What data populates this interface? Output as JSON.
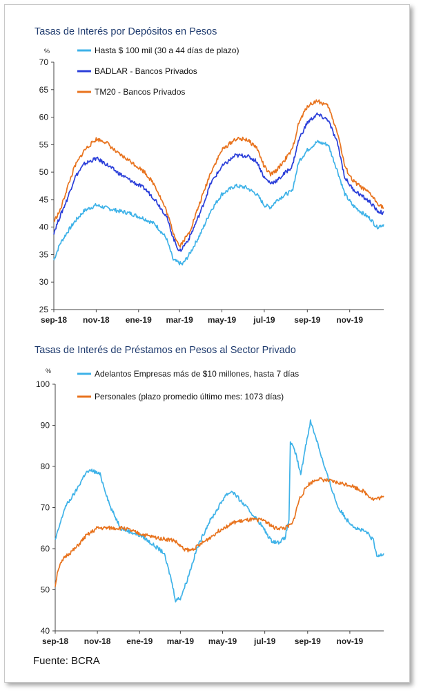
{
  "source": "Fuente: BCRA",
  "chart_data": [
    {
      "type": "line",
      "title": "Tasas de Interés por Depósitos en Pesos",
      "unit_label": "%",
      "ylim": [
        25,
        70
      ],
      "yticks": [
        25,
        30,
        35,
        40,
        45,
        50,
        55,
        60,
        65,
        70
      ],
      "xticks": [
        "sep-18",
        "nov-18",
        "ene-19",
        "mar-19",
        "may-19",
        "jul-19",
        "sep-19",
        "nov-19"
      ],
      "x_start": "2018-09-01",
      "x_end": "2019-12-20",
      "legend_position": "top-left",
      "grid": false,
      "series": [
        {
          "name": "Hasta $ 100 mil (30 a 44 días de plazo)",
          "color": "#3eb2e8",
          "points": [
            [
              "2018-09-01",
              34
            ],
            [
              "2018-09-10",
              37
            ],
            [
              "2018-09-20",
              39
            ],
            [
              "2018-10-01",
              41
            ],
            [
              "2018-10-15",
              43
            ],
            [
              "2018-11-01",
              44
            ],
            [
              "2018-11-15",
              43.5
            ],
            [
              "2018-12-01",
              43
            ],
            [
              "2018-12-20",
              42.5
            ],
            [
              "2019-01-10",
              41.5
            ],
            [
              "2019-01-25",
              40.5
            ],
            [
              "2019-02-10",
              38
            ],
            [
              "2019-02-20",
              34
            ],
            [
              "2019-03-05",
              33.2
            ],
            [
              "2019-03-15",
              35
            ],
            [
              "2019-04-01",
              39
            ],
            [
              "2019-04-15",
              43
            ],
            [
              "2019-05-01",
              46
            ],
            [
              "2019-05-20",
              47.5
            ],
            [
              "2019-06-05",
              47.2
            ],
            [
              "2019-06-20",
              46
            ],
            [
              "2019-07-01",
              44
            ],
            [
              "2019-07-10",
              43.6
            ],
            [
              "2019-07-20",
              45
            ],
            [
              "2019-08-01",
              46
            ],
            [
              "2019-08-10",
              46.5
            ],
            [
              "2019-08-20",
              52
            ],
            [
              "2019-09-01",
              54
            ],
            [
              "2019-09-15",
              55.5
            ],
            [
              "2019-10-01",
              55
            ],
            [
              "2019-10-15",
              50
            ],
            [
              "2019-10-25",
              46
            ],
            [
              "2019-11-05",
              44
            ],
            [
              "2019-11-20",
              42.5
            ],
            [
              "2019-12-01",
              41.5
            ],
            [
              "2019-12-10",
              40
            ],
            [
              "2019-12-20",
              40.5
            ]
          ]
        },
        {
          "name": "BADLAR - Bancos Privados",
          "color": "#2b3fd9",
          "points": [
            [
              "2018-09-01",
              39
            ],
            [
              "2018-09-10",
              42
            ],
            [
              "2018-09-20",
              45
            ],
            [
              "2018-10-01",
              49
            ],
            [
              "2018-10-15",
              51.5
            ],
            [
              "2018-11-01",
              52.5
            ],
            [
              "2018-11-15",
              51.5
            ],
            [
              "2018-12-01",
              50
            ],
            [
              "2018-12-20",
              48.5
            ],
            [
              "2019-01-10",
              47
            ],
            [
              "2019-01-25",
              45
            ],
            [
              "2019-02-10",
              42
            ],
            [
              "2019-02-20",
              38
            ],
            [
              "2019-03-01",
              35.5
            ],
            [
              "2019-03-15",
              38
            ],
            [
              "2019-04-01",
              43
            ],
            [
              "2019-04-15",
              48
            ],
            [
              "2019-05-01",
              51
            ],
            [
              "2019-05-20",
              53
            ],
            [
              "2019-06-05",
              53
            ],
            [
              "2019-06-20",
              52
            ],
            [
              "2019-07-01",
              49
            ],
            [
              "2019-07-10",
              48
            ],
            [
              "2019-07-20",
              48.5
            ],
            [
              "2019-08-01",
              50
            ],
            [
              "2019-08-10",
              51
            ],
            [
              "2019-08-20",
              56
            ],
            [
              "2019-09-01",
              59
            ],
            [
              "2019-09-15",
              60.5
            ],
            [
              "2019-10-01",
              59.5
            ],
            [
              "2019-10-15",
              55
            ],
            [
              "2019-10-25",
              49
            ],
            [
              "2019-11-05",
              47
            ],
            [
              "2019-11-20",
              45.5
            ],
            [
              "2019-12-01",
              44.5
            ],
            [
              "2019-12-10",
              43
            ],
            [
              "2019-12-20",
              42.5
            ]
          ]
        },
        {
          "name": "TM20 - Bancos Privados",
          "color": "#e8731e",
          "points": [
            [
              "2018-09-01",
              41
            ],
            [
              "2018-09-10",
              43
            ],
            [
              "2018-09-20",
              47
            ],
            [
              "2018-10-01",
              51
            ],
            [
              "2018-10-15",
              54
            ],
            [
              "2018-11-01",
              56
            ],
            [
              "2018-11-15",
              55.5
            ],
            [
              "2018-12-01",
              53.5
            ],
            [
              "2018-12-20",
              52
            ],
            [
              "2019-01-10",
              50
            ],
            [
              "2019-01-25",
              47.5
            ],
            [
              "2019-02-10",
              43
            ],
            [
              "2019-02-20",
              39
            ],
            [
              "2019-03-01",
              36.5
            ],
            [
              "2019-03-15",
              39
            ],
            [
              "2019-04-01",
              45
            ],
            [
              "2019-04-15",
              50
            ],
            [
              "2019-05-01",
              54
            ],
            [
              "2019-05-20",
              56
            ],
            [
              "2019-06-05",
              56
            ],
            [
              "2019-06-20",
              54.5
            ],
            [
              "2019-07-01",
              51
            ],
            [
              "2019-07-10",
              49.5
            ],
            [
              "2019-07-20",
              50.5
            ],
            [
              "2019-08-01",
              52.5
            ],
            [
              "2019-08-10",
              54
            ],
            [
              "2019-08-20",
              59
            ],
            [
              "2019-09-01",
              62
            ],
            [
              "2019-09-15",
              63
            ],
            [
              "2019-10-01",
              62
            ],
            [
              "2019-10-15",
              57
            ],
            [
              "2019-10-25",
              51
            ],
            [
              "2019-11-05",
              48.5
            ],
            [
              "2019-11-20",
              47
            ],
            [
              "2019-12-01",
              46
            ],
            [
              "2019-12-10",
              44.5
            ],
            [
              "2019-12-20",
              43.5
            ]
          ]
        }
      ]
    },
    {
      "type": "line",
      "title": "Tasas de Interés de Préstamos en Pesos al Sector Privado",
      "unit_label": "%",
      "ylim": [
        40,
        100
      ],
      "yticks": [
        40,
        50,
        60,
        70,
        80,
        90,
        100
      ],
      "xticks": [
        "sep-18",
        "nov-18",
        "ene-19",
        "mar-19",
        "may-19",
        "jul-19",
        "sep-19",
        "nov-19"
      ],
      "x_start": "2018-09-01",
      "x_end": "2019-12-20",
      "legend_position": "top-left",
      "grid": false,
      "series": [
        {
          "name": "Adelantos Empresas más de $10 millones, hasta 7 días",
          "color": "#3eb2e8",
          "points": [
            [
              "2018-09-01",
              62
            ],
            [
              "2018-09-15",
              70
            ],
            [
              "2018-10-01",
              74
            ],
            [
              "2018-10-15",
              78.5
            ],
            [
              "2018-10-25",
              79
            ],
            [
              "2018-11-05",
              78
            ],
            [
              "2018-11-20",
              70
            ],
            [
              "2018-12-05",
              65
            ],
            [
              "2018-12-20",
              64
            ],
            [
              "2019-01-05",
              63
            ],
            [
              "2019-01-20",
              61
            ],
            [
              "2019-02-05",
              59
            ],
            [
              "2019-02-15",
              53
            ],
            [
              "2019-02-22",
              47.5
            ],
            [
              "2019-03-01",
              48
            ],
            [
              "2019-03-10",
              52
            ],
            [
              "2019-03-25",
              60
            ],
            [
              "2019-04-10",
              66
            ],
            [
              "2019-04-25",
              70
            ],
            [
              "2019-05-05",
              73
            ],
            [
              "2019-05-15",
              74
            ],
            [
              "2019-05-25",
              72
            ],
            [
              "2019-06-10",
              69
            ],
            [
              "2019-06-25",
              66
            ],
            [
              "2019-07-10",
              62
            ],
            [
              "2019-07-20",
              61.5
            ],
            [
              "2019-07-30",
              62.5
            ],
            [
              "2019-08-05",
              67
            ],
            [
              "2019-08-07",
              86
            ],
            [
              "2019-08-15",
              83
            ],
            [
              "2019-08-22",
              78
            ],
            [
              "2019-08-28",
              84
            ],
            [
              "2019-09-05",
              91
            ],
            [
              "2019-09-15",
              86
            ],
            [
              "2019-09-25",
              80
            ],
            [
              "2019-10-05",
              75
            ],
            [
              "2019-10-15",
              70
            ],
            [
              "2019-10-28",
              67
            ],
            [
              "2019-11-10",
              65
            ],
            [
              "2019-11-25",
              64
            ],
            [
              "2019-12-05",
              62
            ],
            [
              "2019-12-10",
              58
            ],
            [
              "2019-12-20",
              59
            ]
          ]
        },
        {
          "name": "Personales (plazo promedio último mes: 1073 días)",
          "color": "#e8731e",
          "points": [
            [
              "2018-09-01",
              51
            ],
            [
              "2018-09-05",
              55
            ],
            [
              "2018-09-15",
              58
            ],
            [
              "2018-09-30",
              60
            ],
            [
              "2018-10-15",
              63
            ],
            [
              "2018-11-01",
              65
            ],
            [
              "2018-11-20",
              65
            ],
            [
              "2018-12-10",
              65
            ],
            [
              "2018-12-25",
              64
            ],
            [
              "2019-01-15",
              63
            ],
            [
              "2019-02-01",
              62.5
            ],
            [
              "2019-02-20",
              62
            ],
            [
              "2019-03-05",
              60
            ],
            [
              "2019-03-15",
              59.5
            ],
            [
              "2019-03-30",
              61
            ],
            [
              "2019-04-15",
              63
            ],
            [
              "2019-05-01",
              65
            ],
            [
              "2019-05-20",
              66.5
            ],
            [
              "2019-06-10",
              67
            ],
            [
              "2019-06-30",
              67
            ],
            [
              "2019-07-15",
              65
            ],
            [
              "2019-07-30",
              65
            ],
            [
              "2019-08-10",
              66
            ],
            [
              "2019-08-20",
              72
            ],
            [
              "2019-09-01",
              75.5
            ],
            [
              "2019-09-15",
              77
            ],
            [
              "2019-10-01",
              76.5
            ],
            [
              "2019-10-15",
              76
            ],
            [
              "2019-11-01",
              75.5
            ],
            [
              "2019-11-20",
              74
            ],
            [
              "2019-12-05",
              72
            ],
            [
              "2019-12-20",
              72.5
            ]
          ]
        }
      ]
    }
  ]
}
